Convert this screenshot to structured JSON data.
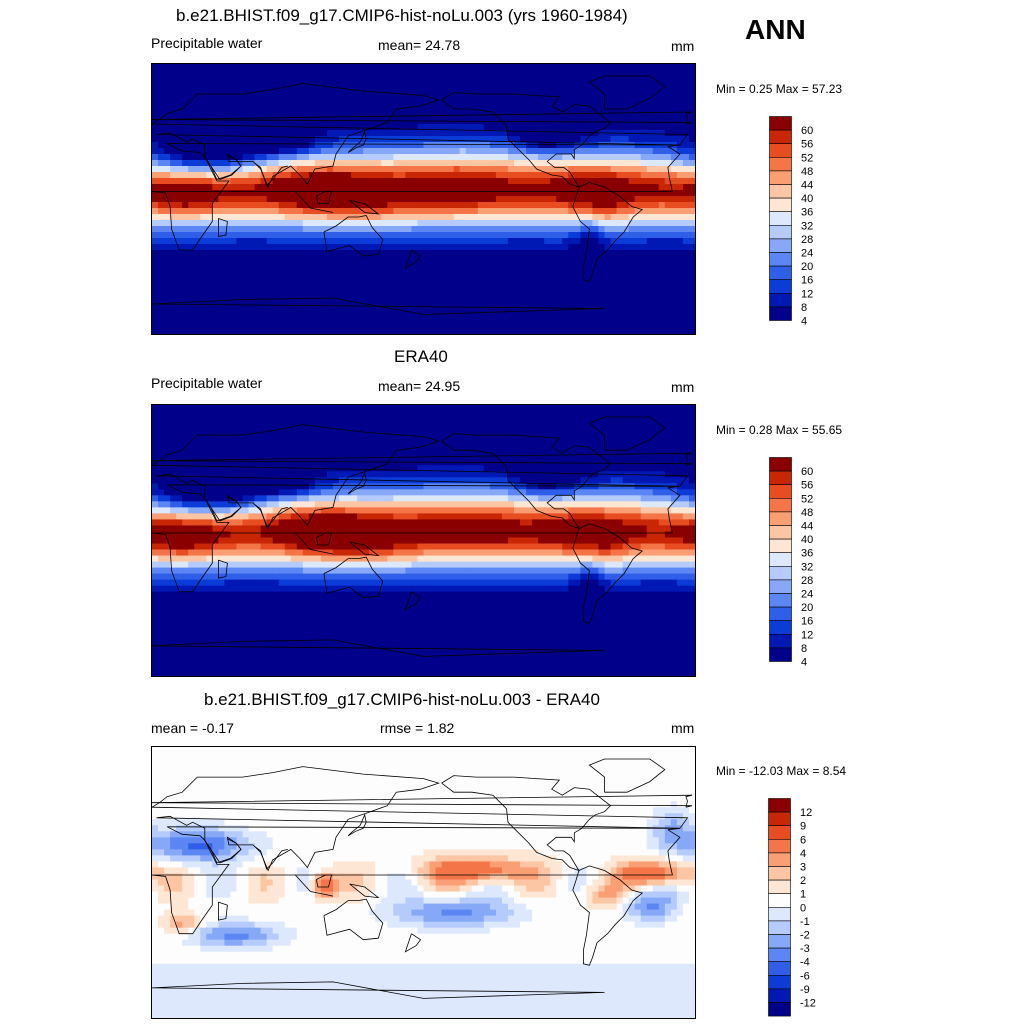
{
  "season": "ANN",
  "colors": {
    "abs_scale": [
      "#00008a",
      "#0018b4",
      "#0b3cd8",
      "#2f5ee8",
      "#5b86f3",
      "#86a8f7",
      "#b4cbfb",
      "#dde8fd",
      "#fde6d4",
      "#fcc5a4",
      "#fa9e73",
      "#f47648",
      "#e84d21",
      "#c92606",
      "#8a0000"
    ],
    "diff_scale": [
      "#00008a",
      "#0018b4",
      "#0b3cd8",
      "#2f5ee8",
      "#5b86f3",
      "#86a8f7",
      "#b4cbfb",
      "#dde8fd",
      "#fdfdfd",
      "#fde6d4",
      "#fcc5a4",
      "#fa9e73",
      "#f47648",
      "#e84d21",
      "#c92606",
      "#8a0000"
    ]
  },
  "panels": [
    {
      "title": "b.e21.BHIST.f09_g17.CMIP6-hist-noLu.003 (yrs 1960-1984)",
      "left": "Precipitable water",
      "middle": "mean=  24.78",
      "units": "mm",
      "minmax": "Min =   0.25 Max =  57.23",
      "legend": [
        "60",
        "56",
        "52",
        "48",
        "44",
        "40",
        "36",
        "32",
        "28",
        "24",
        "20",
        "16",
        "12",
        "8",
        "4"
      ]
    },
    {
      "title": "ERA40",
      "left": "Precipitable water",
      "middle": "mean=  24.95",
      "units": "mm",
      "minmax": "Min =   0.28 Max =  55.65",
      "legend": [
        "60",
        "56",
        "52",
        "48",
        "44",
        "40",
        "36",
        "32",
        "28",
        "24",
        "20",
        "16",
        "12",
        "8",
        "4"
      ]
    },
    {
      "title": "b.e21.BHIST.f09_g17.CMIP6-hist-noLu.003 - ERA40",
      "left": "mean =  -0.17",
      "middle": "rmse =   1.82",
      "units": "mm",
      "minmax": "Min = -12.03 Max =   8.54",
      "legend": [
        "12",
        "9",
        "6",
        "4",
        "3",
        "2",
        "1",
        "0",
        "-1",
        "-2",
        "-3",
        "-4",
        "-6",
        "-9",
        "-12"
      ]
    }
  ],
  "chart_data": [
    {
      "type": "heatmap",
      "title": "b.e21.BHIST.f09_g17.CMIP6-hist-noLu.003 (yrs 1960-1984)",
      "variable": "Precipitable water",
      "units": "mm",
      "mean": 24.78,
      "min": 0.25,
      "max": 57.23,
      "contour_levels": [
        4,
        8,
        12,
        16,
        20,
        24,
        28,
        32,
        36,
        40,
        44,
        48,
        52,
        56,
        60
      ]
    },
    {
      "type": "heatmap",
      "title": "ERA40",
      "variable": "Precipitable water",
      "units": "mm",
      "mean": 24.95,
      "min": 0.28,
      "max": 55.65,
      "contour_levels": [
        4,
        8,
        12,
        16,
        20,
        24,
        28,
        32,
        36,
        40,
        44,
        48,
        52,
        56,
        60
      ]
    },
    {
      "type": "heatmap",
      "title": "b.e21.BHIST.f09_g17.CMIP6-hist-noLu.003 - ERA40",
      "units": "mm",
      "mean": -0.17,
      "rmse": 1.82,
      "min": -12.03,
      "max": 8.54,
      "contour_levels": [
        -12,
        -9,
        -6,
        -4,
        -3,
        -2,
        -1,
        0,
        1,
        2,
        3,
        4,
        6,
        9,
        12
      ]
    }
  ]
}
